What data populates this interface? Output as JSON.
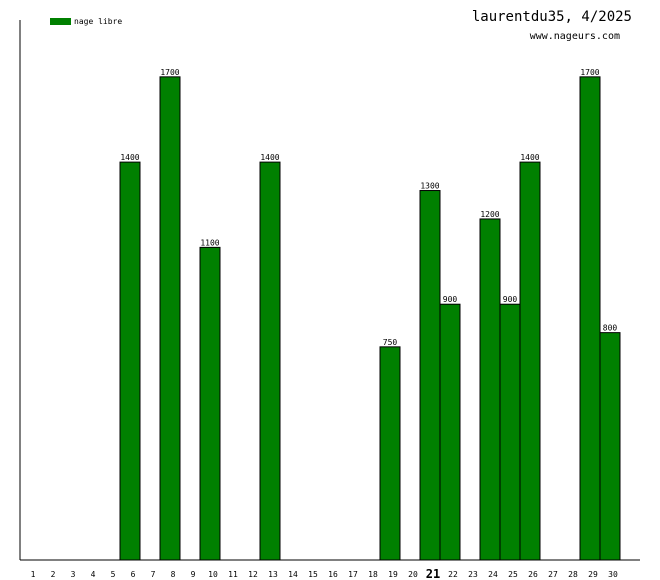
{
  "header": {
    "title": "laurentdu35, 4/2025",
    "subtitle": "www.nageurs.com"
  },
  "chart_data": {
    "type": "bar",
    "categories": [
      "1",
      "2",
      "3",
      "4",
      "5",
      "6",
      "7",
      "8",
      "9",
      "10",
      "11",
      "12",
      "13",
      "14",
      "15",
      "16",
      "17",
      "18",
      "19",
      "20",
      "21",
      "22",
      "23",
      "24",
      "25",
      "26",
      "27",
      "28",
      "29",
      "30"
    ],
    "highlight_category": "21",
    "series": [
      {
        "name": "nage libre",
        "color": "#008000",
        "values": [
          0,
          0,
          0,
          0,
          0,
          1400,
          0,
          1700,
          0,
          1100,
          0,
          0,
          1400,
          0,
          0,
          0,
          0,
          0,
          750,
          0,
          1300,
          900,
          0,
          1200,
          900,
          1400,
          0,
          0,
          1700,
          800
        ]
      }
    ],
    "ylim": [
      0,
      1900
    ],
    "grid": false,
    "legend": "top-left",
    "xlabel": "",
    "ylabel": ""
  }
}
